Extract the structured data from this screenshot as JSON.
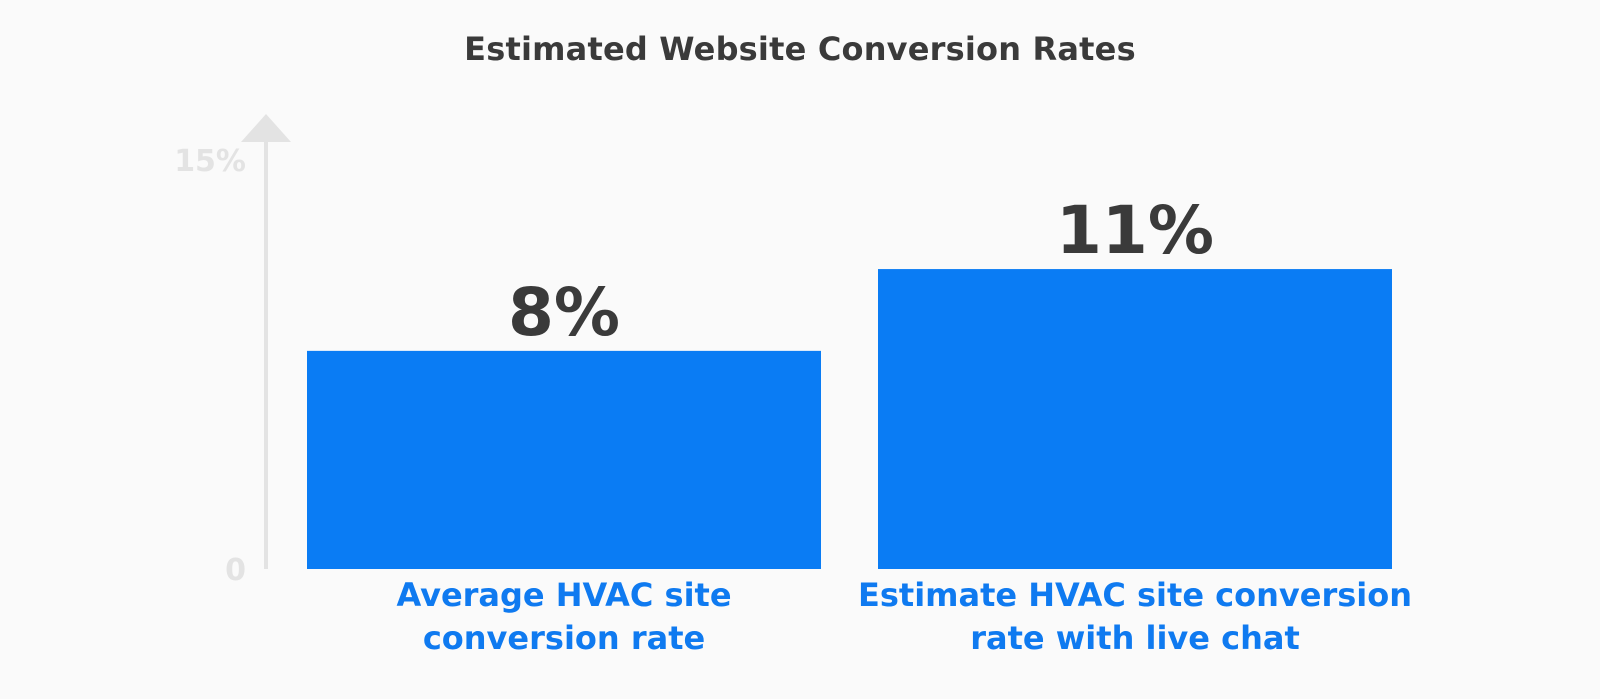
{
  "chart_data": {
    "type": "bar",
    "title": "Estimated Website Conversion Rates",
    "categories": [
      [
        "Average HVAC site",
        "conversion rate"
      ],
      [
        "Estimate HVAC site conversion",
        "rate with live chat"
      ]
    ],
    "values": [
      8,
      11
    ],
    "value_labels": [
      "8%",
      "11%"
    ],
    "ylim": [
      0,
      15
    ],
    "y_ticks": [
      {
        "value": 0,
        "label": "0"
      },
      {
        "value": 15,
        "label": "15%"
      }
    ],
    "xlabel": "",
    "ylabel": "",
    "grid": false,
    "colors": {
      "bar": "#0a7cf4",
      "axis": "#e3e3e3",
      "value_text": "#3a3a3a",
      "category_text": "#0f7af0"
    }
  }
}
